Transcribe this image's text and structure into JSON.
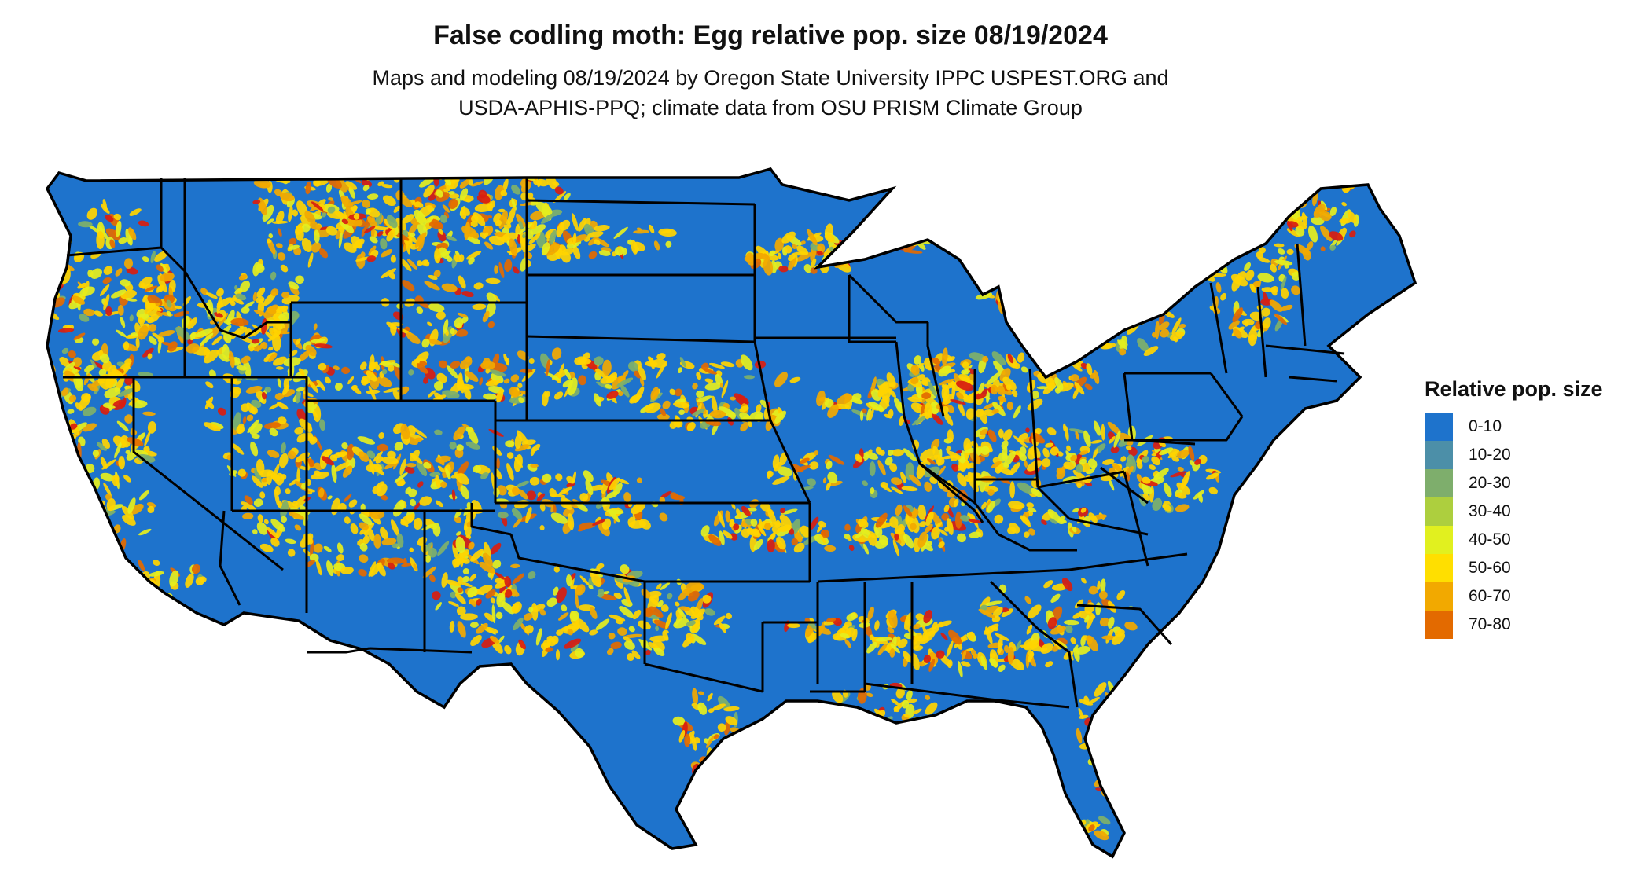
{
  "title": "False codling moth: Egg relative pop. size 08/19/2024",
  "subtitle_line1": "Maps and modeling 08/19/2024 by Oregon State University IPPC USPEST.ORG and",
  "subtitle_line2": "USDA-APHIS-PPQ; climate data from OSU PRISM Climate Group",
  "map": {
    "base_color": "#1E73CC",
    "border_color": "#000000",
    "hotspot_colors": [
      "#FFD400",
      "#E4EE1E",
      "#F2A900",
      "#E36A00",
      "#D81E10",
      "#7EB06A"
    ]
  },
  "legend": {
    "title": "Relative pop. size",
    "items": [
      {
        "label": "0-10",
        "color": "#1E73CC"
      },
      {
        "label": "10-20",
        "color": "#4C8FA8"
      },
      {
        "label": "20-30",
        "color": "#7EAE6C"
      },
      {
        "label": "30-40",
        "color": "#ADCF3E"
      },
      {
        "label": "40-50",
        "color": "#E1F01F"
      },
      {
        "label": "50-60",
        "color": "#FFDF00"
      },
      {
        "label": "60-70",
        "color": "#F2A900"
      },
      {
        "label": "70-80",
        "color": "#E36A00"
      }
    ]
  }
}
